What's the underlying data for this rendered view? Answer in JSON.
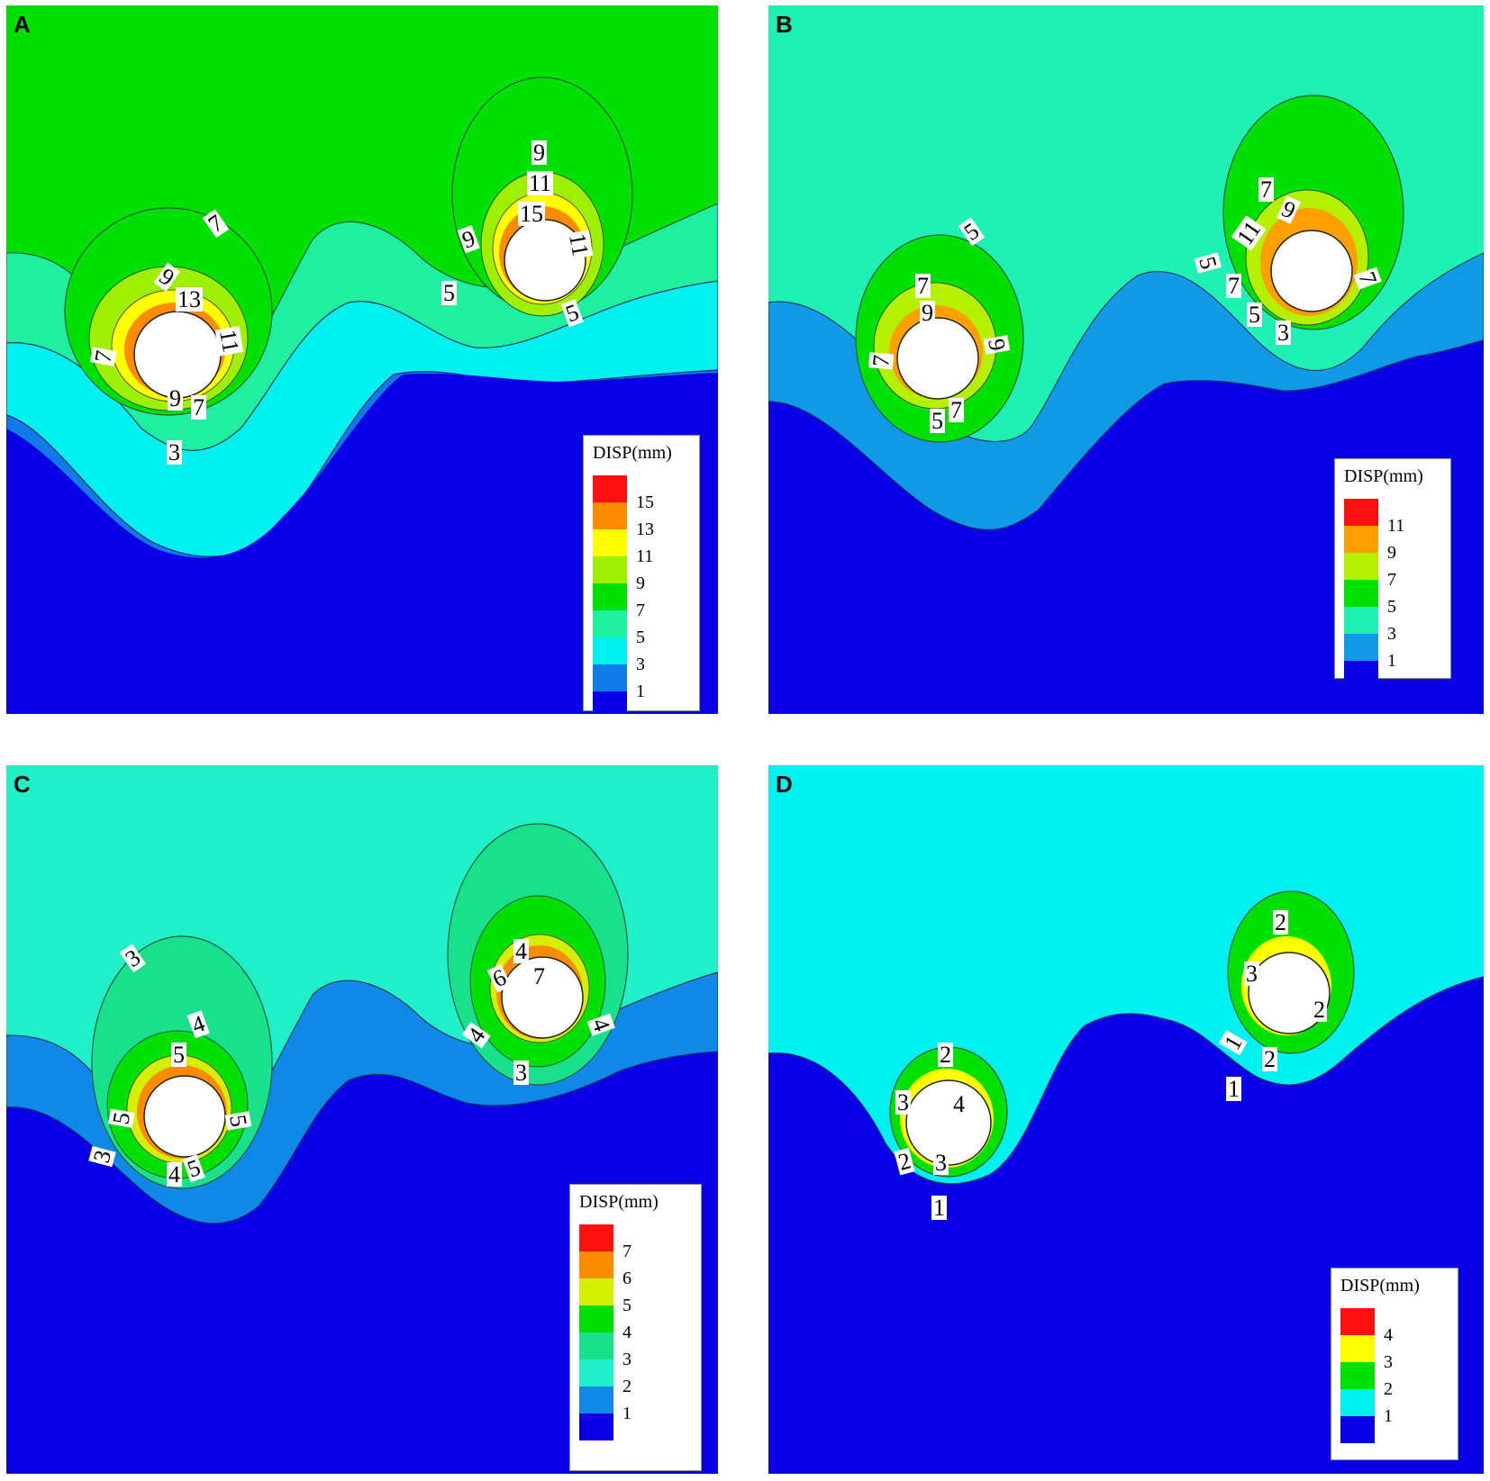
{
  "legend_colors": {
    "A": [
      "#0a00e6",
      "#0f7ae8",
      "#00f0f0",
      "#1ff0a0",
      "#00e000",
      "#9ef000",
      "#ffff00",
      "#ff8c00",
      "#ff1010"
    ],
    "B": [
      "#0a00e6",
      "#0f9ae8",
      "#1ff0b4",
      "#00e000",
      "#b4f000",
      "#ffa000",
      "#ff1010"
    ],
    "C": [
      "#0a00e6",
      "#0f88e8",
      "#1ff0c8",
      "#19e08a",
      "#00e000",
      "#d4f000",
      "#ff8c00",
      "#ff1010"
    ],
    "D": [
      "#0a00e6",
      "#00f0f0",
      "#00e000",
      "#ffff00",
      "#ff1010"
    ]
  },
  "panels": [
    {
      "id": "A",
      "legend": {
        "title": "DISP(mm)",
        "values": [
          "15",
          "13",
          "11",
          "9",
          "7",
          "5",
          "3",
          "1"
        ]
      },
      "contour_labels": [
        "7",
        "9",
        "13",
        "11",
        "7",
        "9",
        "7",
        "3",
        "9",
        "11",
        "15",
        "9",
        "11",
        "5",
        "5"
      ]
    },
    {
      "id": "B",
      "legend": {
        "title": "DISP(mm)",
        "values": [
          "11",
          "9",
          "7",
          "5",
          "3",
          "1"
        ]
      },
      "contour_labels": [
        "5",
        "7",
        "9",
        "9",
        "7",
        "5",
        "7",
        "7",
        "9",
        "11",
        "5",
        "7",
        "7",
        "5",
        "3"
      ]
    },
    {
      "id": "C",
      "legend": {
        "title": "DISP(mm)",
        "values": [
          "7",
          "6",
          "5",
          "4",
          "3",
          "2",
          "1"
        ]
      },
      "contour_labels": [
        "3",
        "4",
        "5",
        "5",
        "5",
        "3",
        "4",
        "5",
        "4",
        "6",
        "7",
        "4",
        "4",
        "3"
      ]
    },
    {
      "id": "D",
      "legend": {
        "title": "DISP(mm)",
        "values": [
          "4",
          "3",
          "2",
          "1"
        ]
      },
      "contour_labels": [
        "2",
        "3",
        "4",
        "2",
        "3",
        "1",
        "2",
        "3",
        "2",
        "1",
        "2",
        "1"
      ]
    }
  ]
}
